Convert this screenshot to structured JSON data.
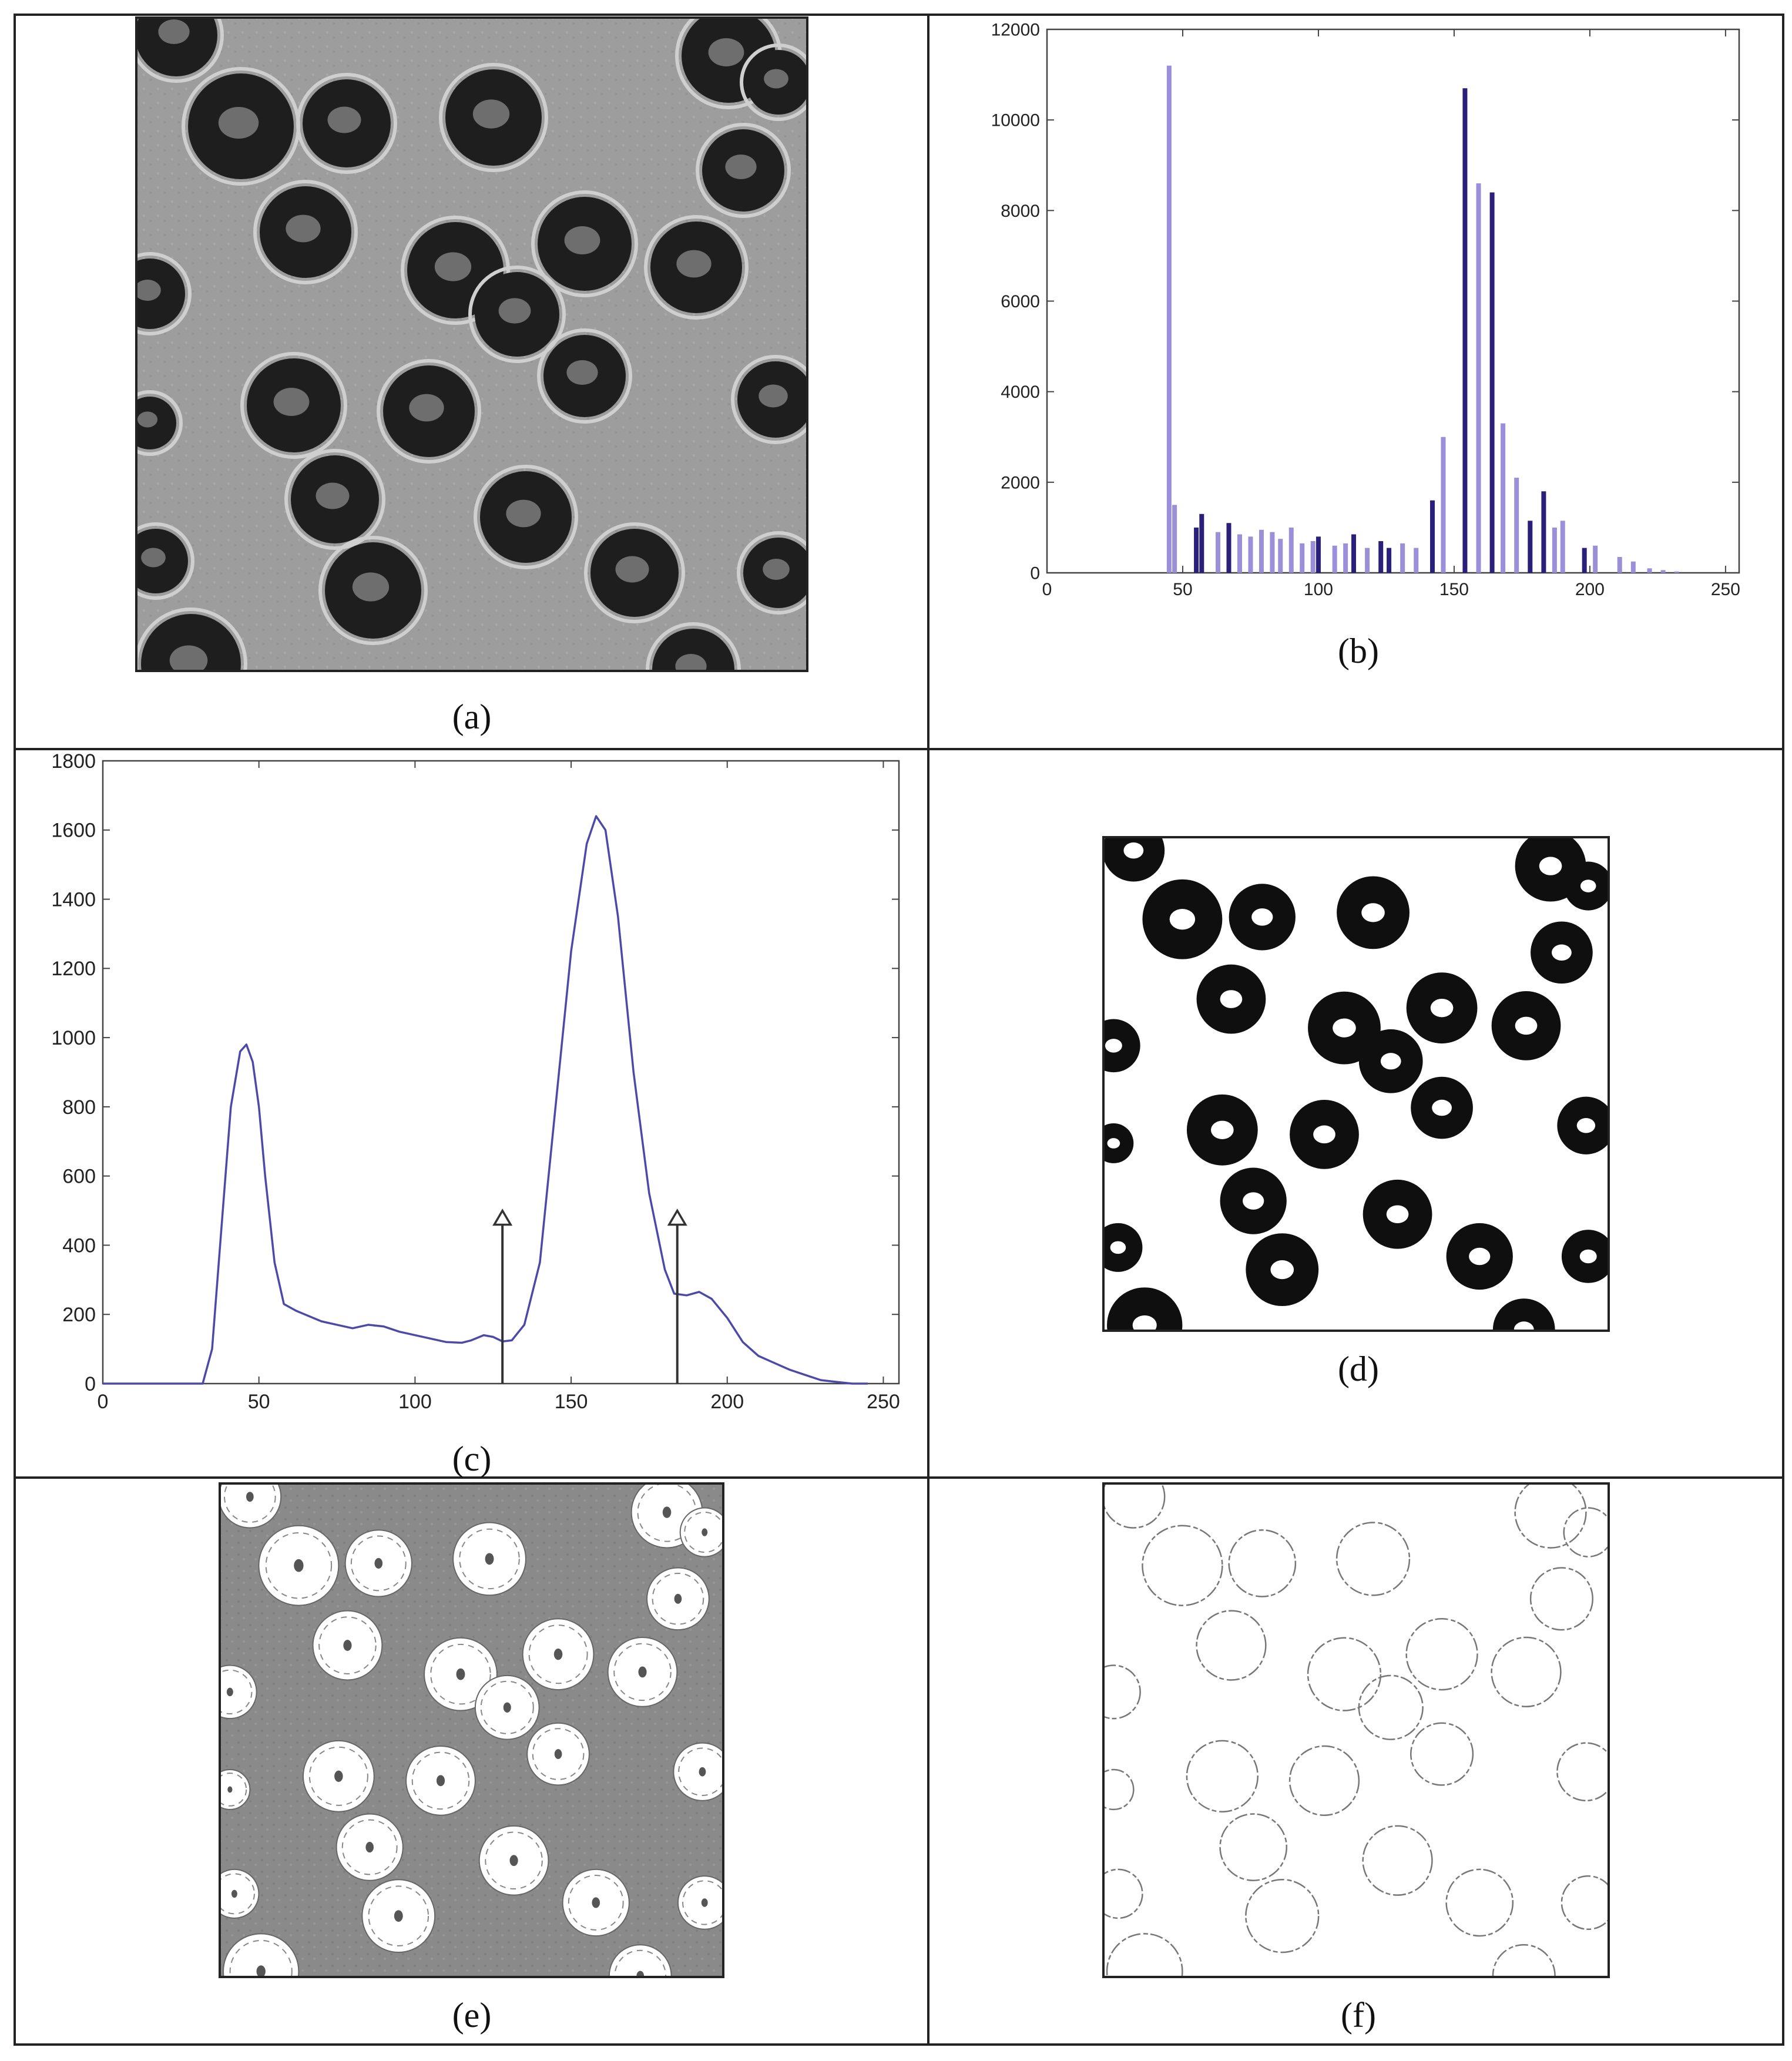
{
  "figure": {
    "panels": [
      {
        "id": "a",
        "caption": "(a)",
        "content": "image"
      },
      {
        "id": "b",
        "caption": "(b)",
        "content": "chart"
      },
      {
        "id": "c",
        "caption": "(c)",
        "content": "chart"
      },
      {
        "id": "d",
        "caption": "(d)",
        "content": "image"
      },
      {
        "id": "e",
        "caption": "(e)",
        "content": "image"
      },
      {
        "id": "f",
        "caption": "(f)",
        "content": "image"
      }
    ]
  },
  "chart_data": [
    {
      "panel": "b",
      "type": "bar",
      "xlim": [
        0,
        255
      ],
      "ylim": [
        0,
        12000
      ],
      "xticks": [
        "0",
        "50",
        "100",
        "150",
        "200",
        "250"
      ],
      "yticks": [
        "0",
        "2000",
        "4000",
        "6000",
        "8000",
        "10000",
        "12000"
      ],
      "colors": {
        "light": "#9a8fd8",
        "dark": "#2a207a"
      },
      "grid": false,
      "bars": [
        {
          "x": 45,
          "y": 11200,
          "tone": "light"
        },
        {
          "x": 47,
          "y": 1500,
          "tone": "light"
        },
        {
          "x": 55,
          "y": 1000,
          "tone": "dark"
        },
        {
          "x": 57,
          "y": 1300,
          "tone": "dark"
        },
        {
          "x": 63,
          "y": 900,
          "tone": "light"
        },
        {
          "x": 67,
          "y": 1100,
          "tone": "dark"
        },
        {
          "x": 71,
          "y": 850,
          "tone": "light"
        },
        {
          "x": 75,
          "y": 800,
          "tone": "light"
        },
        {
          "x": 79,
          "y": 950,
          "tone": "light"
        },
        {
          "x": 83,
          "y": 900,
          "tone": "light"
        },
        {
          "x": 86,
          "y": 750,
          "tone": "light"
        },
        {
          "x": 90,
          "y": 1000,
          "tone": "light"
        },
        {
          "x": 94,
          "y": 650,
          "tone": "light"
        },
        {
          "x": 98,
          "y": 700,
          "tone": "light"
        },
        {
          "x": 100,
          "y": 800,
          "tone": "dark"
        },
        {
          "x": 106,
          "y": 600,
          "tone": "light"
        },
        {
          "x": 110,
          "y": 650,
          "tone": "light"
        },
        {
          "x": 113,
          "y": 850,
          "tone": "dark"
        },
        {
          "x": 118,
          "y": 550,
          "tone": "light"
        },
        {
          "x": 123,
          "y": 700,
          "tone": "dark"
        },
        {
          "x": 126,
          "y": 550,
          "tone": "dark"
        },
        {
          "x": 131,
          "y": 650,
          "tone": "light"
        },
        {
          "x": 136,
          "y": 550,
          "tone": "light"
        },
        {
          "x": 142,
          "y": 1600,
          "tone": "dark"
        },
        {
          "x": 146,
          "y": 3000,
          "tone": "light"
        },
        {
          "x": 154,
          "y": 10700,
          "tone": "dark"
        },
        {
          "x": 159,
          "y": 8600,
          "tone": "light"
        },
        {
          "x": 164,
          "y": 8400,
          "tone": "dark"
        },
        {
          "x": 168,
          "y": 3300,
          "tone": "light"
        },
        {
          "x": 173,
          "y": 2100,
          "tone": "light"
        },
        {
          "x": 178,
          "y": 1150,
          "tone": "dark"
        },
        {
          "x": 183,
          "y": 1800,
          "tone": "dark"
        },
        {
          "x": 187,
          "y": 1000,
          "tone": "light"
        },
        {
          "x": 190,
          "y": 1150,
          "tone": "light"
        },
        {
          "x": 198,
          "y": 550,
          "tone": "dark"
        },
        {
          "x": 202,
          "y": 600,
          "tone": "light"
        },
        {
          "x": 211,
          "y": 350,
          "tone": "light"
        },
        {
          "x": 216,
          "y": 250,
          "tone": "light"
        },
        {
          "x": 222,
          "y": 100,
          "tone": "light"
        },
        {
          "x": 227,
          "y": 60,
          "tone": "light"
        },
        {
          "x": 232,
          "y": 30,
          "tone": "light"
        }
      ]
    },
    {
      "panel": "c",
      "type": "line",
      "xlim": [
        0,
        255
      ],
      "ylim": [
        0,
        1800
      ],
      "xticks": [
        "0",
        "50",
        "100",
        "150",
        "200",
        "250"
      ],
      "yticks": [
        "0",
        "200",
        "400",
        "600",
        "800",
        "1000",
        "1200",
        "1400",
        "1600",
        "1800"
      ],
      "colors": {
        "line": "#4b4aa8",
        "arrow": "#333333"
      },
      "grid": false,
      "x": [
        0,
        32,
        35,
        38,
        41,
        44,
        46,
        48,
        50,
        52,
        55,
        58,
        62,
        70,
        75,
        80,
        85,
        90,
        95,
        100,
        105,
        110,
        115,
        118,
        122,
        125,
        128,
        131,
        135,
        140,
        145,
        150,
        155,
        158,
        161,
        165,
        170,
        175,
        180,
        183,
        187,
        191,
        195,
        200,
        205,
        210,
        215,
        220,
        225,
        230,
        235,
        240,
        245
      ],
      "y": [
        0,
        0,
        100,
        450,
        800,
        960,
        980,
        930,
        800,
        600,
        350,
        230,
        210,
        180,
        170,
        160,
        170,
        165,
        150,
        140,
        130,
        120,
        118,
        125,
        140,
        135,
        122,
        125,
        170,
        350,
        800,
        1250,
        1560,
        1640,
        1600,
        1350,
        900,
        550,
        330,
        260,
        255,
        265,
        245,
        190,
        120,
        80,
        60,
        40,
        25,
        10,
        5,
        0,
        0
      ],
      "annotations": [
        {
          "type": "arrow",
          "x": 128,
          "y_from": 0,
          "y_to": 500
        },
        {
          "type": "arrow",
          "x": 184,
          "y_from": 0,
          "y_to": 500
        }
      ]
    }
  ]
}
